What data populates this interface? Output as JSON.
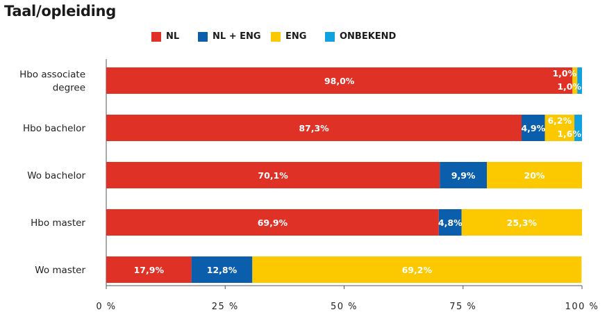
{
  "chart_data": {
    "type": "bar",
    "orientation": "horizontal",
    "stacked": true,
    "title": "Taal/opleiding",
    "categories": [
      "Hbo associate degree",
      "Hbo bachelor",
      "Wo bachelor",
      "Hbo master",
      "Wo master"
    ],
    "category_lines": [
      [
        "Hbo associate",
        "degree"
      ],
      [
        "Hbo bachelor"
      ],
      [
        "Wo bachelor"
      ],
      [
        "Hbo master"
      ],
      [
        "Wo master"
      ]
    ],
    "series": [
      {
        "name": "NL",
        "color": "#e03126",
        "values": [
          98.0,
          87.3,
          70.1,
          69.9,
          17.9
        ],
        "labels": [
          "98,0%",
          "87,3%",
          "70,1%",
          "69,9%",
          "17,9%"
        ]
      },
      {
        "name": "NL + ENG",
        "color": "#0a5eab",
        "values": [
          0,
          4.9,
          9.9,
          4.8,
          12.8
        ],
        "labels": [
          "",
          "4,9%",
          "9,9%",
          "4,8%",
          "12,8%"
        ]
      },
      {
        "name": "ENG",
        "color": "#fcc800",
        "values": [
          1.0,
          6.2,
          20,
          25.3,
          69.2
        ],
        "labels": [
          "1,0%",
          "6,2%",
          "20%",
          "25,3%",
          "69,2%"
        ]
      },
      {
        "name": "ONBEKEND",
        "color": "#12a1e0",
        "values": [
          1.0,
          1.6,
          0,
          0,
          0
        ],
        "labels": [
          "1,0%",
          "1,6%",
          "",
          "",
          ""
        ]
      }
    ],
    "xlim": [
      0,
      100
    ],
    "xticks": [
      0,
      25,
      50,
      75,
      100
    ],
    "xtick_labels": [
      "0 %",
      "25 %",
      "50 %",
      "75 %",
      "100 %"
    ],
    "legend_position": "top",
    "grid": false
  }
}
